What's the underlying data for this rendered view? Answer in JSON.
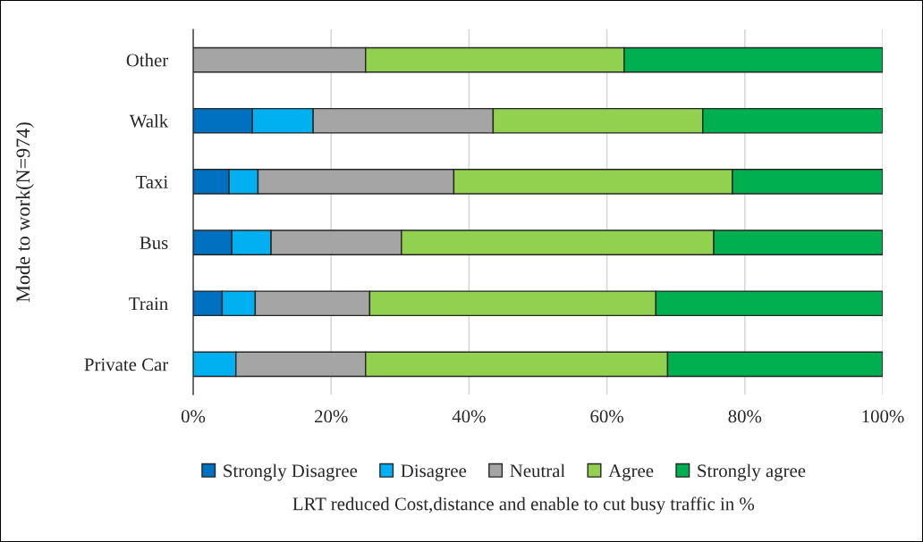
{
  "chart_data": {
    "type": "bar",
    "orientation": "horizontal",
    "stacked": true,
    "xlabel": "LRT reduced Cost,distance and enable to cut busy traffic in %",
    "ylabel": "Mode to work(N=974)",
    "categories": [
      "Other",
      "Walk",
      "Taxi",
      "Bus",
      "Train",
      "Private Car"
    ],
    "series": [
      {
        "name": "Strongly Disagree",
        "color": "#0070c0",
        "values": [
          0,
          8.6,
          5.2,
          5.6,
          4.2,
          0
        ]
      },
      {
        "name": "Disagree",
        "color": "#00b0f0",
        "values": [
          0,
          8.8,
          4.2,
          5.7,
          4.8,
          6.2
        ]
      },
      {
        "name": "Neutral",
        "color": "#a5a5a5",
        "values": [
          25.0,
          26.1,
          28.4,
          18.9,
          16.6,
          18.8
        ]
      },
      {
        "name": "Agree",
        "color": "#92d050",
        "values": [
          37.5,
          30.4,
          40.4,
          45.3,
          41.5,
          43.8
        ]
      },
      {
        "name": "Strongly agree",
        "color": "#00b050",
        "values": [
          37.5,
          26.1,
          21.8,
          24.5,
          32.9,
          31.2
        ]
      }
    ],
    "xlim": [
      0,
      100
    ],
    "xticks": [
      {
        "value": 0,
        "label": "0%"
      },
      {
        "value": 20,
        "label": "20%"
      },
      {
        "value": 40,
        "label": "40%"
      },
      {
        "value": 60,
        "label": "60%"
      },
      {
        "value": 80,
        "label": "80%"
      },
      {
        "value": 100,
        "label": "100%"
      }
    ],
    "grid": "x",
    "legend": "bottom"
  }
}
